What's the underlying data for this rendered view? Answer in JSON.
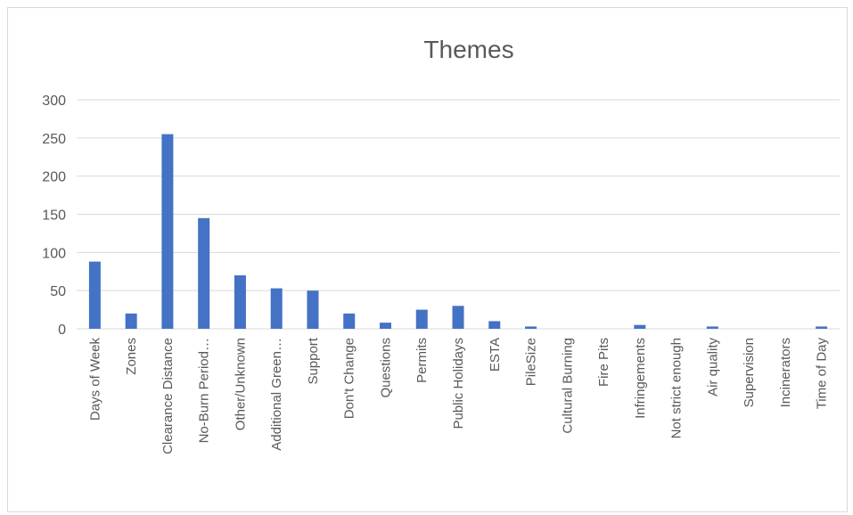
{
  "chart_data": {
    "type": "bar",
    "title": "Themes",
    "xlabel": "",
    "ylabel": "",
    "ylim": [
      0,
      300
    ],
    "yticks": [
      0,
      50,
      100,
      150,
      200,
      250,
      300
    ],
    "grid": true,
    "legend": "none",
    "categories": [
      "Days of Week",
      "Zones",
      "Clearance Distance",
      "No-Burn Period…",
      "Other/Unknown",
      "Additional Green…",
      "Support",
      "Don't Change",
      "Questions",
      "Permits",
      "Public Holidays",
      "ESTA",
      "PileSize",
      "Cultural Burning",
      "Fire Pits",
      "Infringements",
      "Not strict enough",
      "Air quality",
      "Supervision",
      "Incinerators",
      "Time of Day"
    ],
    "values": [
      88,
      20,
      255,
      145,
      70,
      53,
      50,
      20,
      8,
      25,
      30,
      10,
      3,
      0,
      0,
      5,
      0,
      3,
      0,
      0,
      3
    ],
    "bar_color": "#4472c4"
  }
}
